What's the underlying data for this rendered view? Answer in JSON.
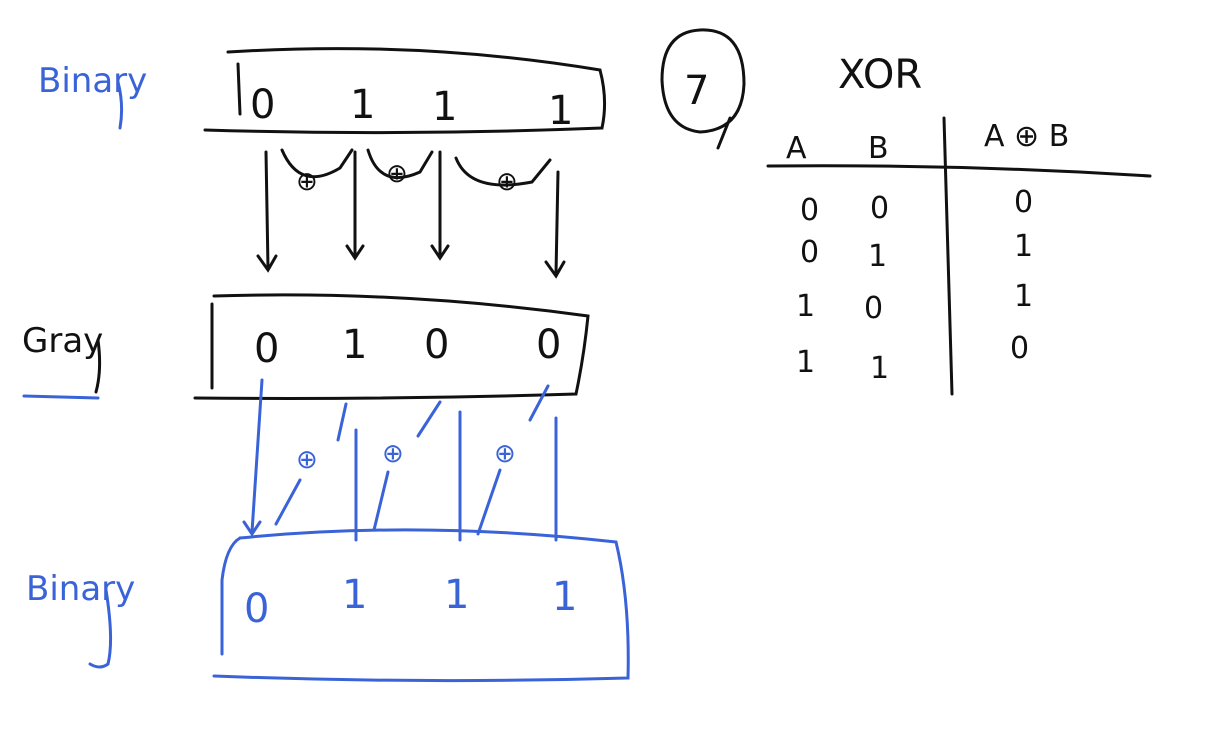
{
  "labels": {
    "binary_top": "Binary",
    "gray": "Gray",
    "binary_bottom": "Binary"
  },
  "top_bits": [
    "0",
    "1",
    "1",
    "1"
  ],
  "gray_bits": [
    "0",
    "1",
    "0",
    "0"
  ],
  "bottom_bits": [
    "0",
    "1",
    "1",
    "1"
  ],
  "circled_number": "7",
  "xor_table": {
    "title": "XOR",
    "headers": [
      "A",
      "B",
      "A ⊕ B"
    ],
    "rows": [
      [
        "0",
        "0",
        "0"
      ],
      [
        "0",
        "1",
        "1"
      ],
      [
        "1",
        "0",
        "1"
      ],
      [
        "1",
        "1",
        "0"
      ]
    ]
  },
  "xor_symbol": "⊕",
  "colors": {
    "black_ink": "#111111",
    "blue_ink": "#3a63d8"
  }
}
